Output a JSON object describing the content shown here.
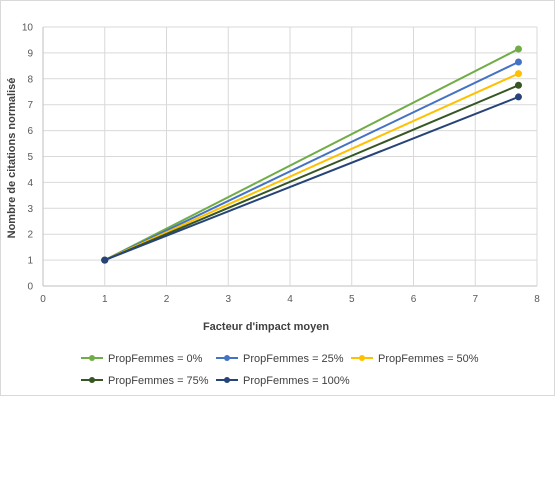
{
  "chart_data": {
    "type": "line",
    "title": "",
    "xlabel": "Facteur d'impact moyen",
    "ylabel": "Nombre de citations normalisé",
    "xlim": [
      0,
      8
    ],
    "ylim": [
      0,
      10
    ],
    "x_ticks": [
      "0",
      "1",
      "2",
      "3",
      "4",
      "5",
      "6",
      "7",
      "8"
    ],
    "y_ticks": [
      "0",
      "1",
      "2",
      "3",
      "4",
      "5",
      "6",
      "7",
      "8",
      "9",
      "10"
    ],
    "grid": true,
    "legend_position": "bottom",
    "series": [
      {
        "name": "PropFemmes = 0%",
        "color": "#70ad47",
        "points": [
          [
            1,
            1
          ],
          [
            7.7,
            9.15
          ]
        ]
      },
      {
        "name": "PropFemmes = 25%",
        "color": "#4472c4",
        "points": [
          [
            1,
            1
          ],
          [
            7.7,
            8.65
          ]
        ]
      },
      {
        "name": "PropFemmes = 50%",
        "color": "#ffc000",
        "points": [
          [
            1,
            1
          ],
          [
            7.7,
            8.2
          ]
        ]
      },
      {
        "name": "PropFemmes = 75%",
        "color": "#375623",
        "points": [
          [
            1,
            1
          ],
          [
            7.7,
            7.75
          ]
        ]
      },
      {
        "name": "PropFemmes = 100%",
        "color": "#264478",
        "points": [
          [
            1,
            1
          ],
          [
            7.7,
            7.3
          ]
        ]
      }
    ]
  }
}
